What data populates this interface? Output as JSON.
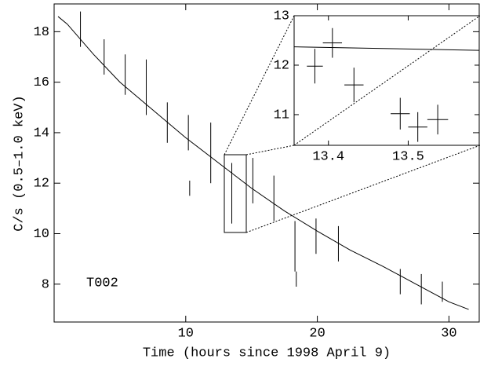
{
  "chart_data": [
    {
      "type": "errorbar",
      "xlabel": "Time (hours since 1998 April 9)",
      "ylabel": "C/s (0.5–1.0 keV)",
      "annotation": "T002",
      "x": [
        2.0,
        3.8,
        5.4,
        7.0,
        8.6,
        10.2,
        10.3,
        11.9,
        13.5,
        15.1,
        16.7,
        18.3,
        18.4,
        19.9,
        21.6,
        26.3,
        27.9,
        29.5
      ],
      "values": [
        18.1,
        17.0,
        16.3,
        15.8,
        14.4,
        14.0,
        11.8,
        13.2,
        11.6,
        12.1,
        11.4,
        9.5,
        8.2,
        9.9,
        9.6,
        8.1,
        7.8,
        7.7
      ],
      "errors": [
        0.7,
        0.7,
        0.8,
        1.1,
        0.8,
        0.7,
        0.3,
        1.2,
        1.2,
        0.9,
        0.9,
        1.0,
        0.3,
        0.7,
        0.7,
        0.5,
        0.6,
        0.4
      ],
      "model": {
        "x": [
          0.3,
          1,
          3,
          5,
          7.5,
          10,
          12.5,
          15,
          17.5,
          20,
          22.5,
          25,
          27.5,
          30,
          31.5
        ],
        "values": [
          18.6,
          18.3,
          17.1,
          16.0,
          14.9,
          13.8,
          12.8,
          11.8,
          10.9,
          10.1,
          9.35,
          8.7,
          8.0,
          7.3,
          7.0
        ]
      },
      "xlim": [
        0,
        32.3
      ],
      "ylim": [
        6.5,
        19.1
      ],
      "xticks": [
        10,
        20,
        30
      ],
      "yticks": [
        8,
        10,
        12,
        14,
        16,
        18
      ]
    },
    {
      "type": "errorbar",
      "x": [
        13.383,
        13.405,
        13.432,
        13.49,
        13.512,
        13.537
      ],
      "xerrors": [
        0.01,
        0.012,
        0.012,
        0.012,
        0.012,
        0.013
      ],
      "values": [
        11.98,
        12.45,
        11.6,
        11.02,
        10.75,
        10.9
      ],
      "errors": [
        0.35,
        0.3,
        0.35,
        0.32,
        0.3,
        0.3
      ],
      "model": {
        "x": [
          13.357,
          13.589
        ],
        "values": [
          12.37,
          12.3
        ]
      },
      "xlim": [
        13.357,
        13.589
      ],
      "ylim": [
        10.38,
        13
      ],
      "xticks": [
        13.4,
        13.5
      ],
      "yticks": [
        11,
        12,
        13
      ]
    }
  ]
}
